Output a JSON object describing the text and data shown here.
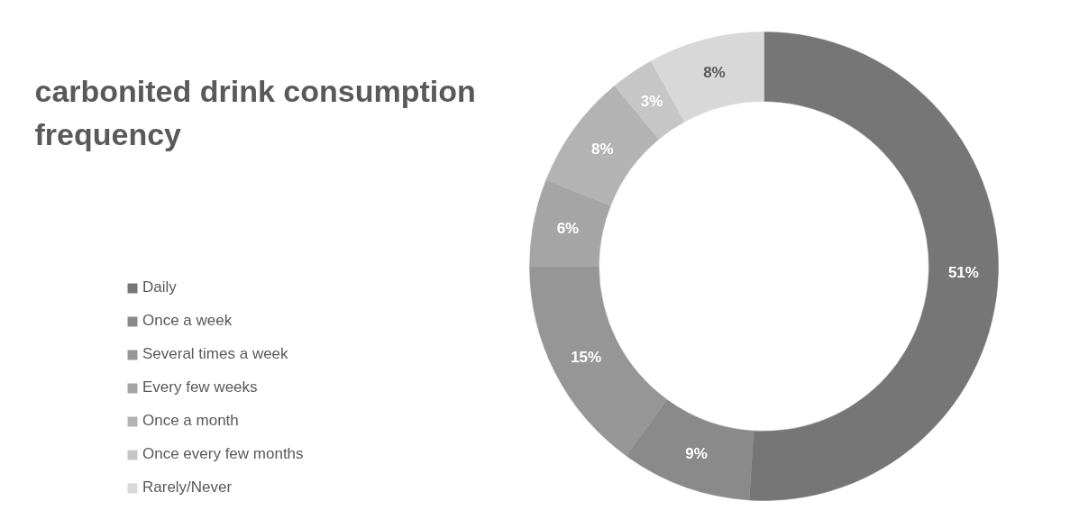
{
  "chart_data": {
    "type": "donut",
    "title": "carbonited drink consumption frequency",
    "categories": [
      "Daily",
      "Once a week",
      "Several times a week",
      "Every few weeks",
      "Once a month",
      "Once every few months",
      "Rarely/Never"
    ],
    "values": [
      51,
      9,
      15,
      6,
      8,
      3,
      8
    ],
    "value_labels": [
      "51%",
      "9%",
      "15%",
      "6%",
      "8%",
      "3%",
      "8%"
    ],
    "colors": [
      "#767676",
      "#8a8a8a",
      "#969696",
      "#a5a5a5",
      "#b3b3b3",
      "#c6c6c6",
      "#d8d8d8"
    ],
    "legend": "left"
  }
}
